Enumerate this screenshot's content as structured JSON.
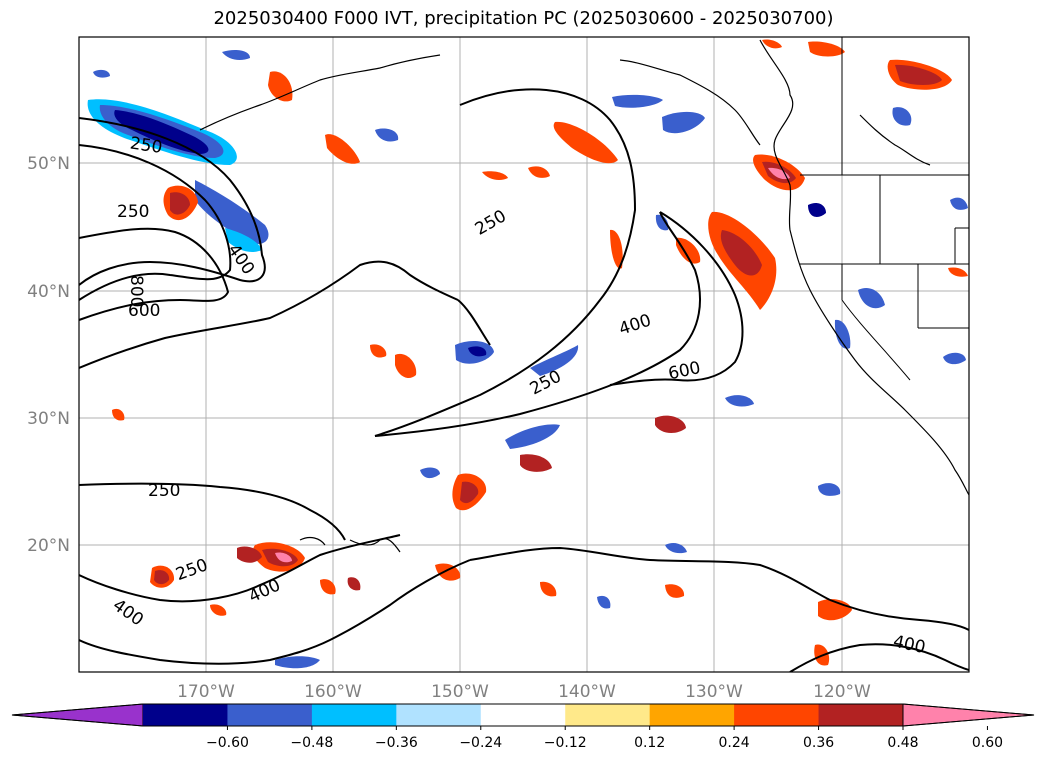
{
  "title": "2025030400 F000 IVT, precipitation PC (2025030600 - 2025030700)",
  "lat_labels": [
    "50°N",
    "40°N",
    "30°N",
    "20°N"
  ],
  "lon_labels": [
    "170°W",
    "160°W",
    "150°W",
    "140°W",
    "130°W",
    "120°W"
  ],
  "colorbar": {
    "colors": [
      "#9932cc",
      "#00008b",
      "#3a5fcd",
      "#00bfff",
      "#b0e2ff",
      "#ffffff",
      "#ffe98a",
      "#ffa500",
      "#ff4500",
      "#b22222",
      "#ff82ab"
    ],
    "tick_labels": [
      "−0.60",
      "−0.48",
      "−0.36",
      "−0.24",
      "−0.12",
      "0.12",
      "0.24",
      "0.36",
      "0.48",
      "0.60"
    ]
  },
  "contour_labels": [
    "250",
    "250",
    "250",
    "800",
    "600",
    "400",
    "400",
    "250",
    "600",
    "250",
    "250",
    "400",
    "400",
    "400"
  ]
}
